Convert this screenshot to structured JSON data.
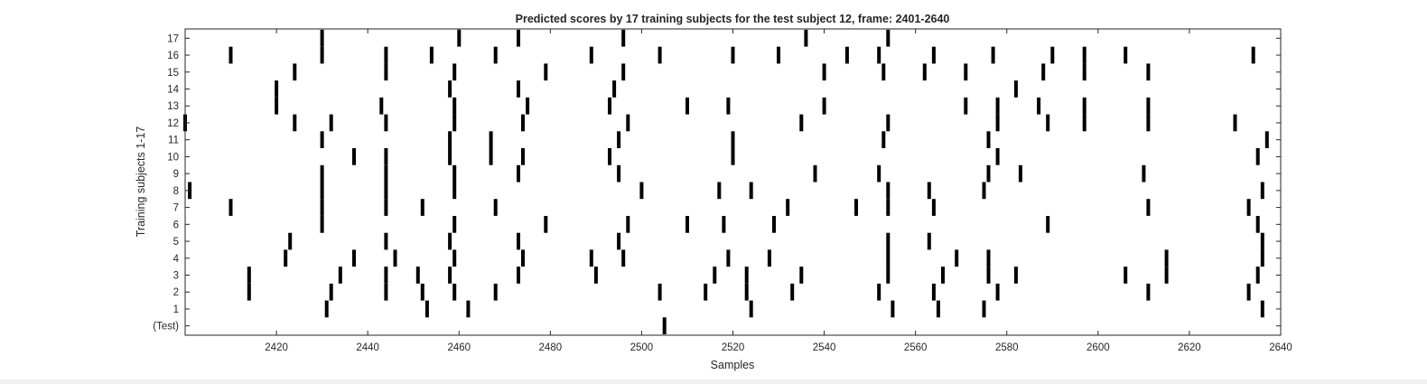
{
  "chart_data": {
    "type": "raster",
    "title": "Predicted scores by 17 training subjects for the test subject 12, frame: 2401-2640",
    "xlabel": "Samples",
    "ylabel": "Training subjects 1-17",
    "xlim": [
      2400,
      2640
    ],
    "x_ticks": [
      2420,
      2440,
      2460,
      2480,
      2500,
      2520,
      2540,
      2560,
      2580,
      2600,
      2620,
      2640
    ],
    "row_labels": [
      "(Test)",
      "1",
      "2",
      "3",
      "4",
      "5",
      "6",
      "7",
      "8",
      "9",
      "10",
      "11",
      "12",
      "13",
      "14",
      "15",
      "16",
      "17"
    ],
    "mark_color": "#000000",
    "rows": [
      {
        "label": "(Test)",
        "x": [
          2505
        ]
      },
      {
        "label": "1",
        "x": [
          2431,
          2453,
          2462,
          2524,
          2555,
          2565,
          2575,
          2636
        ]
      },
      {
        "label": "2",
        "x": [
          2414,
          2432,
          2444,
          2452,
          2459,
          2468,
          2504,
          2514,
          2523,
          2533,
          2552,
          2564,
          2578,
          2611,
          2633
        ]
      },
      {
        "label": "3",
        "x": [
          2414,
          2434,
          2444,
          2451,
          2458,
          2473,
          2490,
          2516,
          2523,
          2535,
          2554,
          2566,
          2576,
          2582,
          2606,
          2615,
          2635
        ]
      },
      {
        "label": "4",
        "x": [
          2422,
          2437,
          2446,
          2459,
          2474,
          2489,
          2496,
          2519,
          2528,
          2554,
          2569,
          2576,
          2615,
          2636
        ]
      },
      {
        "label": "5",
        "x": [
          2423,
          2444,
          2458,
          2473,
          2495,
          2554,
          2563,
          2636
        ]
      },
      {
        "label": "6",
        "x": [
          2430,
          2459,
          2479,
          2497,
          2510,
          2518,
          2529,
          2589,
          2635
        ]
      },
      {
        "label": "7",
        "x": [
          2410,
          2430,
          2444,
          2452,
          2468,
          2532,
          2547,
          2554,
          2564,
          2611,
          2633
        ]
      },
      {
        "label": "8",
        "x": [
          2401,
          2430,
          2444,
          2459,
          2500,
          2517,
          2524,
          2554,
          2563,
          2575,
          2636
        ]
      },
      {
        "label": "9",
        "x": [
          2430,
          2444,
          2459,
          2473,
          2495,
          2538,
          2552,
          2576,
          2583,
          2610
        ]
      },
      {
        "label": "10",
        "x": [
          2437,
          2444,
          2458,
          2467,
          2474,
          2493,
          2520,
          2578,
          2635
        ]
      },
      {
        "label": "11",
        "x": [
          2430,
          2458,
          2467,
          2495,
          2520,
          2553,
          2576,
          2637
        ]
      },
      {
        "label": "12",
        "x": [
          2400,
          2424,
          2432,
          2444,
          2459,
          2474,
          2497,
          2535,
          2554,
          2578,
          2589,
          2597,
          2611,
          2630
        ]
      },
      {
        "label": "13",
        "x": [
          2420,
          2443,
          2459,
          2475,
          2493,
          2510,
          2519,
          2540,
          2571,
          2578,
          2587,
          2597,
          2611
        ]
      },
      {
        "label": "14",
        "x": [
          2420,
          2458,
          2473,
          2494,
          2582
        ]
      },
      {
        "label": "15",
        "x": [
          2424,
          2444,
          2459,
          2479,
          2496,
          2540,
          2553,
          2562,
          2571,
          2588,
          2597,
          2611
        ]
      },
      {
        "label": "16",
        "x": [
          2410,
          2430,
          2444,
          2454,
          2468,
          2489,
          2504,
          2520,
          2530,
          2545,
          2552,
          2564,
          2577,
          2590,
          2597,
          2606,
          2634
        ]
      },
      {
        "label": "17",
        "x": [
          2430,
          2460,
          2473,
          2496,
          2536,
          2554
        ]
      }
    ]
  }
}
